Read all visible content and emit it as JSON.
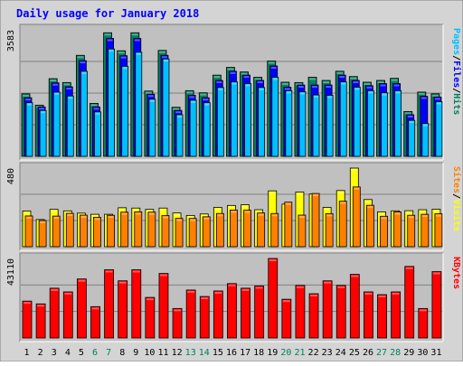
{
  "chart_data": {
    "type": "bar",
    "title": "Daily usage for January 2018",
    "colors": {
      "hits": "#00805c",
      "files": "#0000ff",
      "pages": "#00c0ff",
      "visits": "#ffff00",
      "sites": "#ff8000",
      "kbytes": "#ff0000",
      "title": "#0000ff",
      "weekend_day": "#00805c",
      "weekday": "#000000",
      "panel_bg": "#c0c0c0",
      "frame_bg": "#d4d4d4"
    },
    "categories": [
      "1",
      "2",
      "3",
      "4",
      "5",
      "6",
      "7",
      "8",
      "9",
      "10",
      "11",
      "12",
      "13",
      "14",
      "15",
      "16",
      "17",
      "18",
      "19",
      "20",
      "21",
      "22",
      "23",
      "24",
      "25",
      "26",
      "27",
      "28",
      "29",
      "30",
      "31"
    ],
    "weekend_days": [
      "6",
      "7",
      "13",
      "14",
      "20",
      "21",
      "27",
      "28"
    ],
    "panels": [
      {
        "id": "hits-files-pages",
        "max_label": "3583",
        "ylim": [
          0,
          3583
        ],
        "right_labels": [
          {
            "text": "Pages",
            "color_key": "pages"
          },
          {
            "text": "/",
            "color_key": "weekday"
          },
          {
            "text": "Files",
            "color_key": "files"
          },
          {
            "text": "/",
            "color_key": "weekday"
          },
          {
            "text": "Hits",
            "color_key": "hits"
          }
        ],
        "series": [
          {
            "key": "hits",
            "values": [
              1770,
              1450,
              2200,
              2090,
              2860,
              1500,
              3500,
              2990,
              3500,
              1850,
              3000,
              1390,
              1860,
              1800,
              2300,
              2520,
              2390,
              2240,
              2700,
              2100,
              2090,
              2240,
              2150,
              2410,
              2260,
              2100,
              2150,
              2210,
              1270,
              1820,
              1770
            ]
          },
          {
            "key": "files",
            "values": [
              1660,
              1400,
              2080,
              1970,
              2710,
              1400,
              3340,
              2850,
              3340,
              1760,
              2860,
              1300,
              1730,
              1660,
              2150,
              2410,
              2300,
              2150,
              2560,
              1960,
              2020,
              2020,
              2020,
              2300,
              2150,
              2000,
              2060,
              2060,
              1180,
              1700,
              1680
            ]
          },
          {
            "key": "pages",
            "values": [
              1520,
              1300,
              1820,
              1710,
              2410,
              1260,
              3040,
              2550,
              2950,
              1620,
              2760,
              1180,
              1590,
              1520,
              1950,
              2110,
              2060,
              1950,
              2240,
              1860,
              1830,
              1740,
              1730,
              2110,
              1960,
              1860,
              1800,
              1860,
              1020,
              930,
              1550
            ]
          }
        ]
      },
      {
        "id": "visits-sites",
        "max_label": "480",
        "ylim": [
          0,
          480
        ],
        "right_labels": [
          {
            "text": "Sites",
            "color_key": "sites"
          },
          {
            "text": "/",
            "color_key": "weekday"
          },
          {
            "text": "Visits",
            "color_key": "visits"
          }
        ],
        "series": [
          {
            "key": "visits",
            "values": [
              218,
              166,
              228,
              219,
              205,
              198,
              198,
              238,
              236,
              228,
              236,
              206,
              191,
              200,
              240,
              252,
              256,
              226,
              341,
              260,
              334,
              322,
              240,
              343,
              480,
              288,
              213,
              219,
              220,
              226,
              229
            ]
          },
          {
            "key": "sites",
            "values": [
              188,
              160,
              187,
              204,
              193,
              180,
              192,
              211,
              213,
              211,
              190,
              173,
              173,
              183,
              203,
              224,
              223,
              206,
              203,
              272,
              193,
              325,
              202,
              278,
              365,
              253,
              186,
              213,
              192,
              198,
              201
            ]
          }
        ]
      },
      {
        "id": "kbytes",
        "max_label": "43110",
        "ylim": [
          0,
          43110
        ],
        "right_labels": [
          {
            "text": "KBytes",
            "color_key": "kbytes"
          }
        ],
        "series": [
          {
            "key": "kbytes",
            "values": [
              20000,
              18500,
              27000,
              25000,
              32000,
              17000,
              37000,
              31000,
              37000,
              22000,
              35000,
              16000,
              26000,
              22500,
              25500,
              29500,
              27000,
              28200,
              43110,
              21000,
              28500,
              24000,
              31000,
              28500,
              34500,
              25000,
              23500,
              25000,
              38800,
              16000,
              36000
            ]
          }
        ]
      }
    ]
  }
}
